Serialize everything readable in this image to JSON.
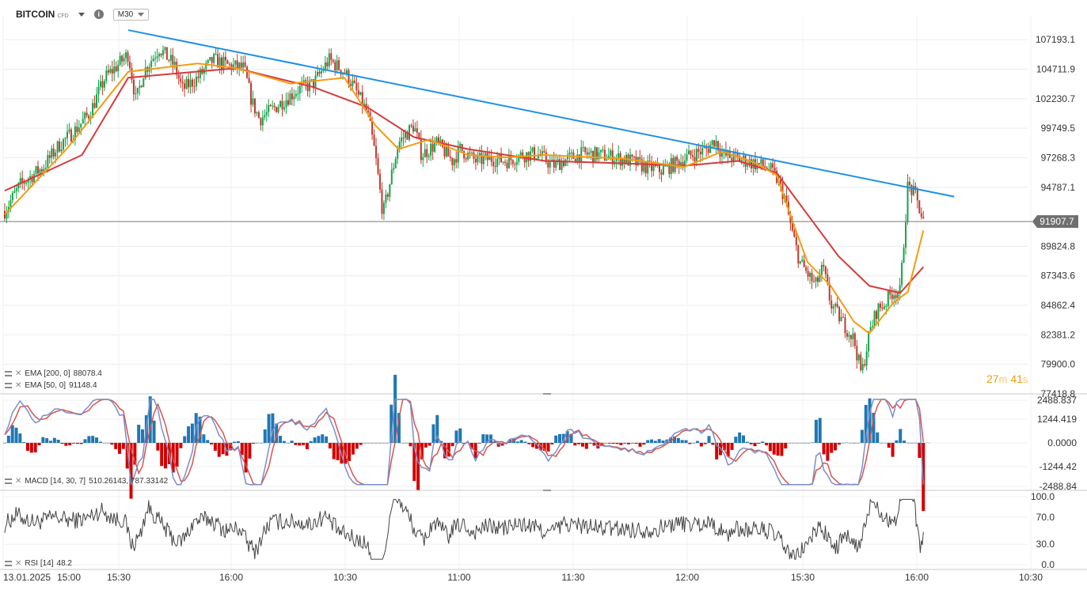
{
  "header": {
    "symbol": "BITCOIN",
    "symbol_suffix": "CFD",
    "info_icon": "i",
    "timeframe": "M30"
  },
  "price_panel": {
    "y_ticks": [
      107193.1,
      104711.9,
      102230.7,
      99749.5,
      97268.3,
      94787.1,
      89824.8,
      87343.6,
      84862.4,
      82381.2,
      79900.0,
      77418.8
    ],
    "y_tick_labels": [
      "107193.1",
      "104711.9",
      "102230.7",
      "99749.5",
      "97268.3",
      "94787.1",
      "89824.8",
      "87343.6",
      "84862.4",
      "82381.2",
      "79900.0",
      "77418.8"
    ],
    "ylim": [
      77418.8,
      109200
    ],
    "current_price": 91907.7,
    "current_price_label": "91907.7",
    "indicators": [
      {
        "label": "EMA [200, 0]",
        "value": "88078.4",
        "color": "#d63a3a"
      },
      {
        "label": "EMA [50, 0]",
        "value": "91148.4",
        "color": "#f39c12"
      }
    ],
    "countdown": {
      "minutes": "27",
      "min_unit": "m",
      "seconds": "41",
      "sec_unit": "s"
    },
    "colors": {
      "up": "#16a34a",
      "down": "#c0392b",
      "trendline": "#1e90e6",
      "price_line": "#777777"
    }
  },
  "macd_panel": {
    "label": "MACD [14, 30, 7]",
    "values": "510.26143,  787.33142",
    "y_tick_labels": [
      "2488.837",
      "1244.419",
      "0.0000",
      "-1244.42",
      "-2488.84"
    ],
    "ylim": [
      -2488.84,
      2488.837
    ]
  },
  "rsi_panel": {
    "label": "RSI [14]",
    "value": "48.2",
    "y_tick_labels": [
      "100.0",
      "70.0",
      "30.0",
      "0.0"
    ],
    "ylim": [
      0,
      100
    ]
  },
  "x_axis": {
    "labels": [
      "13.01.2025",
      "15:00",
      "15:30",
      "16:00",
      "10:30",
      "11:00",
      "11:30",
      "12:00",
      "15:30",
      "16:00",
      "10:30"
    ]
  },
  "chart_data": {
    "type": "candlestick",
    "timeframe": "M30",
    "x_tick_labels": [
      "13.01.2025  15:00",
      "15:30",
      "16:00",
      "10:30",
      "11:00",
      "11:30",
      "12:00",
      "15:30",
      "16:00",
      "10:30"
    ],
    "y_range": [
      77418.8,
      109200
    ],
    "close_path": [
      [
        0,
        92800
      ],
      [
        2,
        95000
      ],
      [
        5,
        96500
      ],
      [
        7,
        98300
      ],
      [
        9,
        99500
      ],
      [
        11,
        101000
      ],
      [
        13,
        104000
      ],
      [
        15,
        105300
      ],
      [
        16,
        106000
      ],
      [
        17,
        102000
      ],
      [
        18,
        104500
      ],
      [
        20,
        106500
      ],
      [
        22,
        105000
      ],
      [
        23,
        103000
      ],
      [
        25,
        104000
      ],
      [
        27,
        105500
      ],
      [
        29,
        105000
      ],
      [
        31,
        104800
      ],
      [
        32,
        102000
      ],
      [
        33,
        100500
      ],
      [
        35,
        101500
      ],
      [
        38,
        103000
      ],
      [
        40,
        103500
      ],
      [
        42,
        105500
      ],
      [
        44,
        104500
      ],
      [
        45,
        103500
      ],
      [
        47,
        101000
      ],
      [
        48,
        97500
      ],
      [
        49,
        92500
      ],
      [
        50,
        95500
      ],
      [
        51,
        98500
      ],
      [
        53,
        100000
      ],
      [
        54,
        97500
      ],
      [
        56,
        98500
      ],
      [
        58,
        97000
      ],
      [
        59,
        98000
      ],
      [
        61,
        97000
      ],
      [
        63,
        97200
      ],
      [
        65,
        97000
      ],
      [
        67,
        97500
      ],
      [
        69,
        97600
      ],
      [
        71,
        96600
      ],
      [
        73,
        97200
      ],
      [
        75,
        97600
      ],
      [
        77,
        97500
      ],
      [
        79,
        97300
      ],
      [
        81,
        97000
      ],
      [
        83,
        96500
      ],
      [
        85,
        96200
      ],
      [
        87,
        96800
      ],
      [
        89,
        97500
      ],
      [
        91,
        98000
      ],
      [
        92,
        98800
      ],
      [
        93,
        97500
      ],
      [
        95,
        97200
      ],
      [
        97,
        96800
      ],
      [
        99,
        96400
      ],
      [
        100,
        95500
      ],
      [
        101,
        94000
      ],
      [
        102,
        91000
      ],
      [
        103,
        88500
      ],
      [
        104,
        87500
      ],
      [
        105,
        86500
      ],
      [
        106,
        88000
      ],
      [
        107,
        85000
      ],
      [
        108,
        84000
      ],
      [
        109,
        83000
      ],
      [
        110,
        82000
      ],
      [
        111,
        79000
      ],
      [
        112,
        82500
      ],
      [
        113,
        84500
      ],
      [
        114,
        85000
      ],
      [
        115,
        86000
      ],
      [
        116,
        86000
      ],
      [
        117,
        95000
      ],
      [
        118,
        94000
      ],
      [
        119,
        91907.7
      ]
    ],
    "ema200_path": [
      [
        0,
        94500
      ],
      [
        10,
        97500
      ],
      [
        16,
        104000
      ],
      [
        30,
        104800
      ],
      [
        40,
        103200
      ],
      [
        47,
        101500
      ],
      [
        53,
        99000
      ],
      [
        60,
        98000
      ],
      [
        70,
        97000
      ],
      [
        80,
        96800
      ],
      [
        88,
        96600
      ],
      [
        95,
        97000
      ],
      [
        100,
        96000
      ],
      [
        104,
        92500
      ],
      [
        108,
        89000
      ],
      [
        112,
        86500
      ],
      [
        116,
        85900
      ],
      [
        119,
        88078.4
      ]
    ],
    "ema50_path": [
      [
        0,
        92500
      ],
      [
        8,
        98000
      ],
      [
        16,
        104500
      ],
      [
        25,
        105200
      ],
      [
        30,
        104800
      ],
      [
        37,
        103500
      ],
      [
        44,
        104000
      ],
      [
        48,
        100000
      ],
      [
        51,
        98000
      ],
      [
        55,
        98800
      ],
      [
        60,
        97500
      ],
      [
        65,
        97300
      ],
      [
        70,
        97500
      ],
      [
        80,
        97200
      ],
      [
        88,
        96500
      ],
      [
        93,
        97800
      ],
      [
        97,
        96900
      ],
      [
        100,
        95800
      ],
      [
        102,
        92000
      ],
      [
        104,
        88500
      ],
      [
        107,
        86500
      ],
      [
        110,
        83500
      ],
      [
        112,
        82500
      ],
      [
        115,
        85000
      ],
      [
        117,
        86000
      ],
      [
        119,
        91148.4
      ]
    ],
    "trendline": [
      [
        16,
        108000
      ],
      [
        123,
        94000
      ]
    ],
    "series": [
      {
        "name": "EMA [200, 0]",
        "last": 88078.4
      },
      {
        "name": "EMA [50, 0]",
        "last": 91148.4
      }
    ]
  }
}
